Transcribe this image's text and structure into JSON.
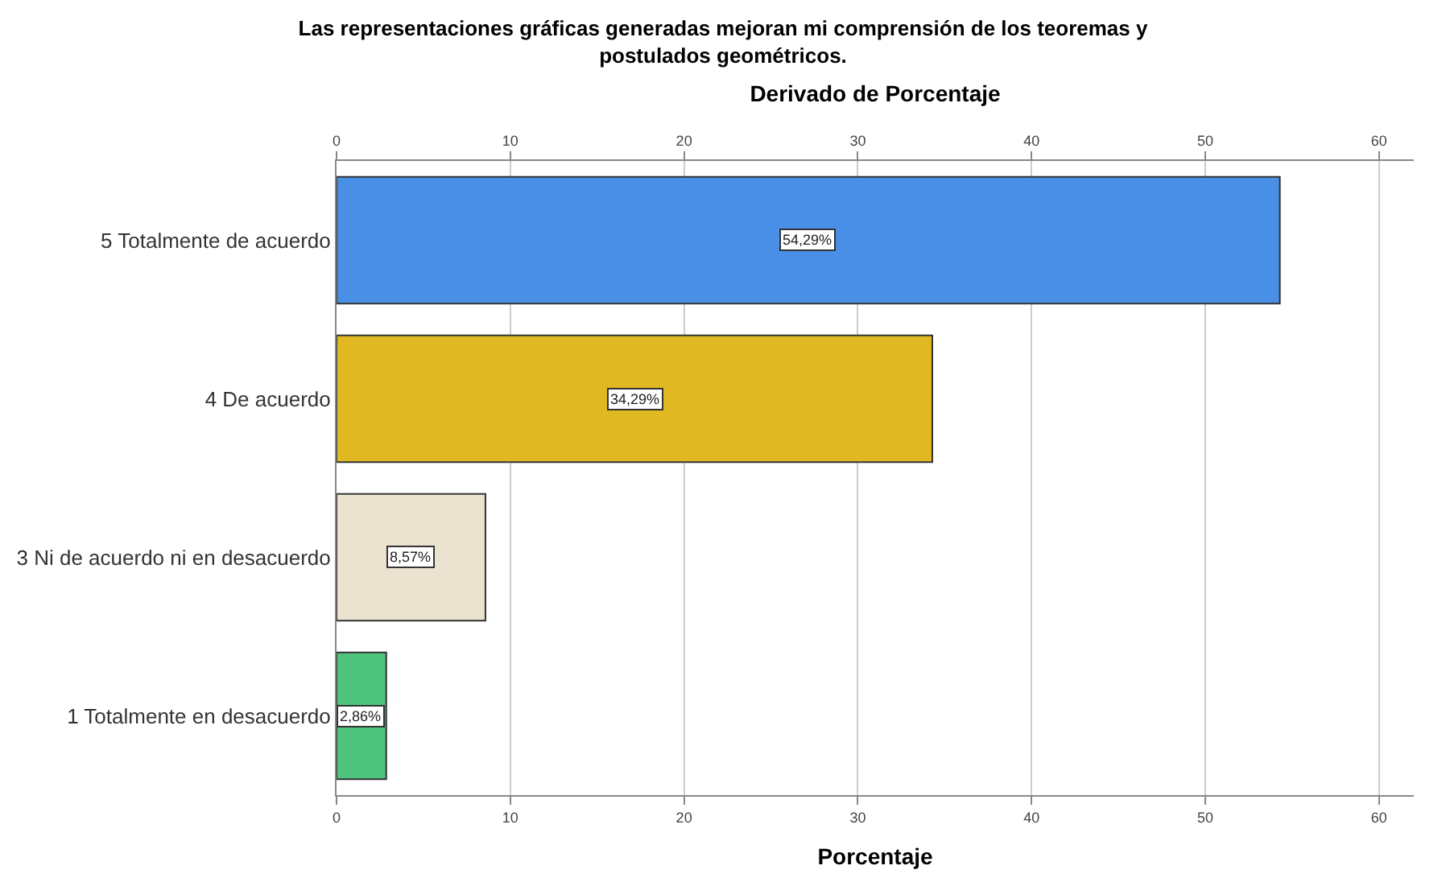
{
  "chart_data": {
    "type": "bar",
    "orientation": "horizontal",
    "title": "Las representaciones gráficas generadas mejoran mi comprensión de los teoremas y\npostulados geométricos.",
    "x2label": "Derivado de Porcentaje",
    "xlabel": "Porcentaje",
    "categories": [
      "5 Totalmente de acuerdo",
      "4 De acuerdo",
      "3 Ni de acuerdo ni en desacuerdo",
      "1 Totalmente en desacuerdo"
    ],
    "values": [
      54.29,
      34.29,
      8.57,
      2.86
    ],
    "value_labels": [
      "54,29%",
      "34,29%",
      "8,57%",
      "2,86%"
    ],
    "colors": [
      "#4a8fe6",
      "#e0b822",
      "#ebe3d0",
      "#4ec47c"
    ],
    "xlim": [
      0,
      62
    ],
    "xticks": [
      0,
      10,
      20,
      30,
      40,
      50,
      60
    ],
    "x2lim": [
      0,
      62
    ],
    "x2ticks": [
      0,
      10,
      20,
      30,
      40,
      50,
      60
    ],
    "grid": "x",
    "legend": false
  }
}
